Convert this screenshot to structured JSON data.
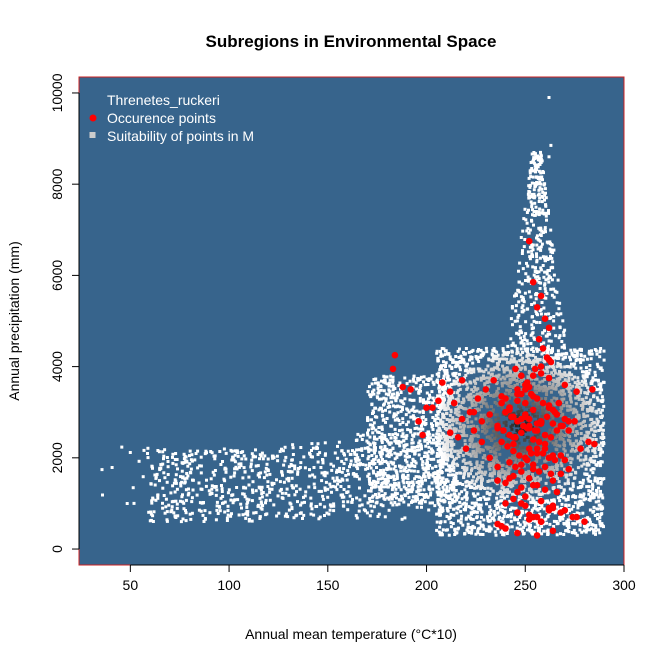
{
  "chart_data": {
    "type": "scatter",
    "title": "Subregions in Environmental Space",
    "xlabel": "Annual mean temperature (°C*10)",
    "ylabel": "Annual precipitation (mm)",
    "xlim": [
      24,
      300
    ],
    "ylim": [
      -350,
      10350
    ],
    "xticks": [
      50,
      100,
      150,
      200,
      250,
      300
    ],
    "yticks": [
      0,
      2000,
      4000,
      6000,
      8000,
      10000
    ],
    "grid": false,
    "legend_position": "top-left",
    "legend": {
      "title": "Threnetes_ruckeri",
      "entries": [
        "Occurence points",
        "Suitability of points in M"
      ]
    },
    "colors": {
      "panel": "#37648c",
      "border": "#cc2020",
      "occurrence": "#ff0000",
      "suitability_low": "#ffffff",
      "suitability_high": "#0e1a24"
    },
    "series": [
      {
        "name": "Occurence points",
        "x": [
          183,
          188,
          192,
          184,
          208,
          212,
          218,
          222,
          226,
          230,
          234,
          238,
          242,
          246,
          250,
          254,
          258,
          262,
          200,
          203,
          206,
          196,
          198,
          214,
          218,
          224,
          228,
          232,
          236,
          240,
          244,
          248,
          252,
          256,
          260,
          264,
          268,
          272,
          275,
          278,
          282,
          285,
          252,
          254,
          256,
          258,
          260,
          262,
          257,
          259,
          261,
          263,
          255,
          258,
          262,
          245,
          248,
          251,
          250,
          253,
          256,
          259,
          262,
          265,
          240,
          243,
          246,
          249,
          252,
          255,
          258,
          261,
          264,
          267,
          270,
          236,
          239,
          242,
          245,
          248,
          251,
          254,
          257,
          260,
          263,
          266,
          269,
          272,
          238,
          241,
          244,
          247,
          250,
          253,
          256,
          259,
          262,
          265,
          268,
          242,
          245,
          248,
          251,
          254,
          257,
          260,
          263,
          236,
          240,
          244,
          248,
          252,
          256,
          260,
          264,
          268,
          272,
          246,
          250,
          254,
          258,
          262,
          266,
          240,
          246,
          252,
          258,
          264,
          270,
          276,
          236,
          240,
          246,
          252,
          256,
          264,
          238,
          244,
          250,
          256,
          262,
          268,
          274,
          280,
          248,
          254,
          258,
          264,
          242,
          246,
          250,
          254,
          258,
          262,
          266,
          212,
          216,
          220,
          224,
          228,
          232,
          236,
          244,
          252,
          256,
          270,
          276,
          284,
          240,
          248,
          252,
          238,
          244,
          250,
          254,
          246,
          252,
          256,
          236,
          242,
          248,
          254,
          260,
          264,
          270,
          242,
          250,
          258
        ],
        "y": [
          3950,
          3550,
          3500,
          4250,
          3650,
          3450,
          3700,
          3000,
          3300,
          3500,
          3700,
          3200,
          3100,
          3500,
          3600,
          3800,
          4000,
          4150,
          3100,
          3100,
          3250,
          2800,
          2500,
          3200,
          2850,
          3000,
          2800,
          2950,
          2700,
          3000,
          2900,
          2850,
          2700,
          2600,
          2500,
          2750,
          2700,
          2600,
          2800,
          2200,
          2350,
          2300,
          6750,
          5850,
          5300,
          5550,
          5050,
          4850,
          4600,
          4400,
          4200,
          4100,
          3950,
          3850,
          3750,
          3950,
          3800,
          3650,
          3500,
          3400,
          3300,
          3200,
          3100,
          3000,
          3000,
          2900,
          2800,
          2700,
          2650,
          2600,
          2750,
          2900,
          3050,
          3200,
          2850,
          2700,
          2600,
          2500,
          2450,
          2550,
          2650,
          2400,
          2350,
          2300,
          2450,
          2600,
          2700,
          2800,
          2350,
          2250,
          2150,
          2050,
          2000,
          2100,
          2200,
          2100,
          2000,
          1950,
          2050,
          1900,
          1800,
          1850,
          1950,
          1750,
          1700,
          1800,
          1650,
          1500,
          1450,
          1600,
          1350,
          1550,
          1400,
          1300,
          1500,
          1650,
          1750,
          1250,
          1150,
          1400,
          1050,
          900,
          1250,
          1000,
          800,
          750,
          600,
          950,
          850,
          700,
          550,
          450,
          350,
          650,
          300,
          400,
          500,
          1100,
          950,
          700,
          850,
          800,
          700,
          600,
          1000,
          700,
          600,
          900,
          3100,
          3250,
          2900,
          3050,
          2800,
          3150,
          2950,
          2550,
          2450,
          2200,
          2600,
          2350,
          2000,
          1800,
          2300,
          2200,
          2100,
          3600,
          3450,
          3500,
          3300,
          3400,
          3550,
          3350,
          2450,
          3200,
          3350,
          3400,
          2850,
          2750,
          2650,
          1550,
          1700,
          1850,
          2200,
          2050,
          1950,
          3050,
          2950,
          2800
        ]
      }
    ]
  }
}
